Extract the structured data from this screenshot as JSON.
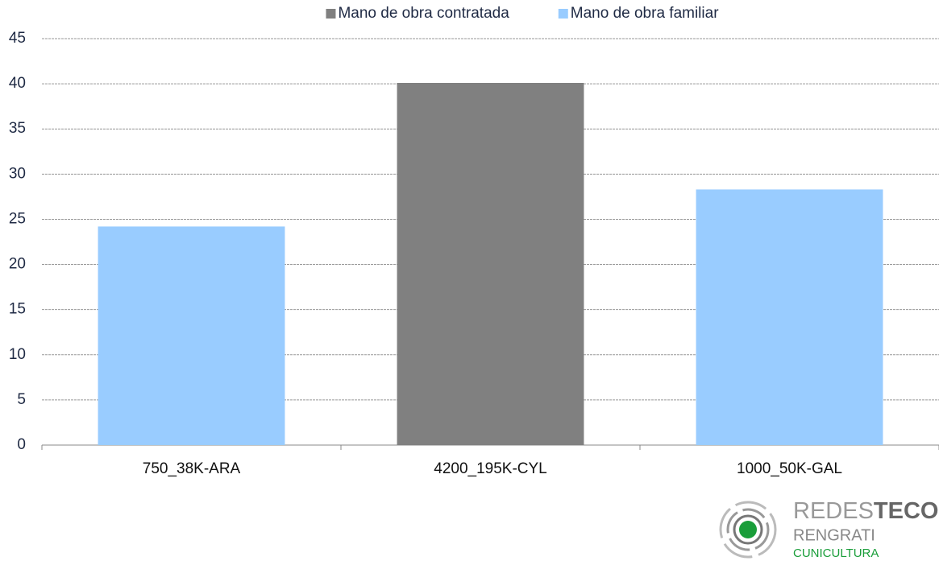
{
  "chart_data": {
    "type": "bar",
    "stacked": true,
    "categories": [
      "750_38K-ARA",
      "4200_195K-CYL",
      "1000_50K-GAL"
    ],
    "series": [
      {
        "name": "Mano de obra contratada",
        "color": "#808080",
        "values": [
          null,
          40.1,
          null
        ]
      },
      {
        "name": "Mano de obra familiar",
        "color": "#99ccff",
        "values": [
          24.2,
          null,
          28.3
        ]
      }
    ],
    "ylim": [
      0,
      45
    ],
    "yticks": [
      0,
      5,
      10,
      15,
      20,
      25,
      30,
      35,
      40,
      45
    ],
    "grid": true,
    "legend": "top"
  },
  "logo": {
    "name_a": "REDES",
    "name_b": "TECO",
    "line2": "RENGRATI",
    "line3": "CUNICULTURA"
  }
}
